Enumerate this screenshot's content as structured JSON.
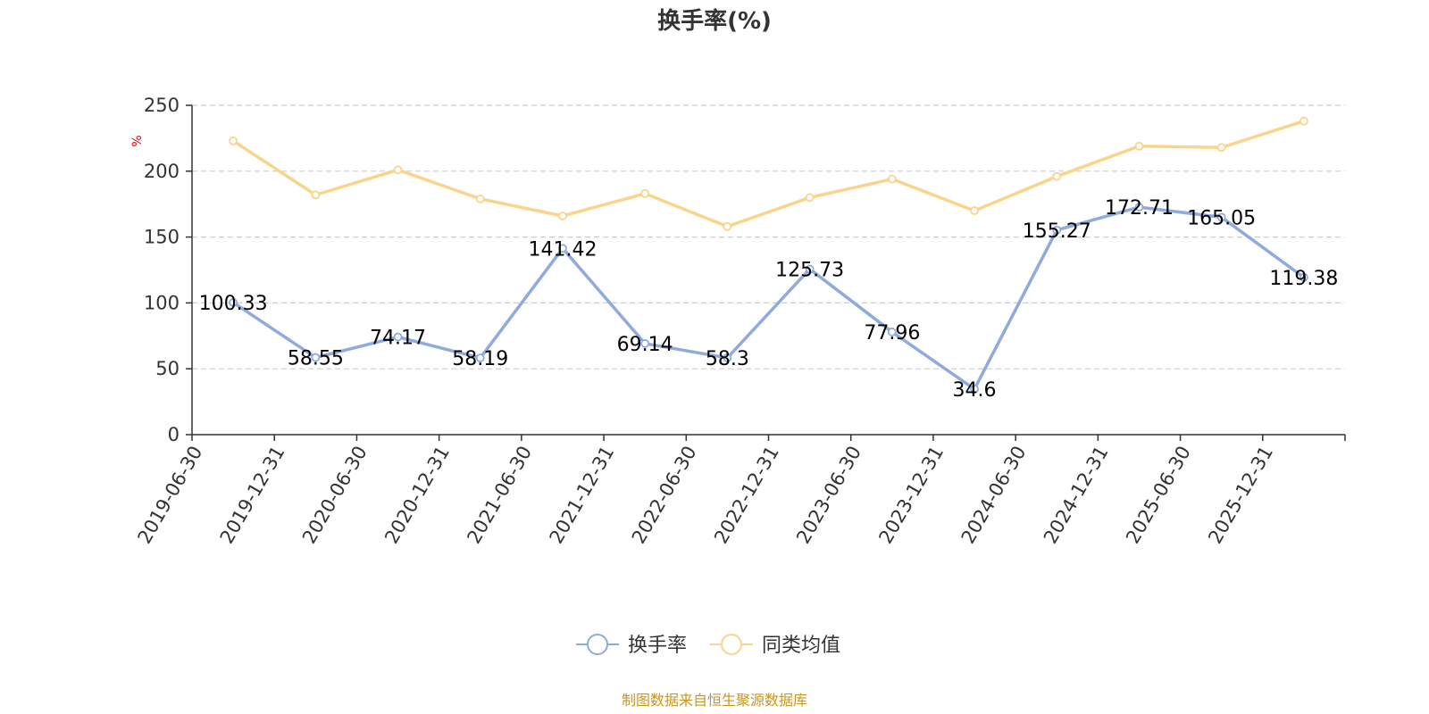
{
  "chart_data": {
    "type": "line",
    "title": "换手率(%)",
    "ylabel": "%",
    "xlabel": "",
    "ylim": [
      0,
      250
    ],
    "yticks": [
      0,
      50,
      100,
      150,
      200,
      250
    ],
    "grid": true,
    "legend_position": "bottom-center",
    "categories": [
      "2019-06-30",
      "2019-12-31",
      "2020-06-30",
      "2020-12-31",
      "2021-06-30",
      "2021-12-31",
      "2022-06-30",
      "2022-12-31",
      "2023-06-30",
      "2023-12-31",
      "2024-06-30",
      "2024-12-31",
      "2025-06-30",
      "2025-12-31"
    ],
    "series": [
      {
        "name": "换手率",
        "color": "#8faadc",
        "show_labels": true,
        "values": [
          100.33,
          58.55,
          74.17,
          58.19,
          141.42,
          69.14,
          58.3,
          125.73,
          77.96,
          34.6,
          155.27,
          172.71,
          165.05,
          119.38
        ]
      },
      {
        "name": "同类均值",
        "color": "#fbd48c",
        "show_labels": false,
        "values": [
          223,
          182,
          201,
          179,
          166,
          183,
          158,
          180,
          194,
          170,
          196,
          219,
          218,
          238
        ]
      }
    ]
  },
  "colors": {
    "axis": "#333333",
    "grid": "#cccccc",
    "unit": "#e60012",
    "source": "#c8961e"
  },
  "source_text": "制图数据来自恒生聚源数据库"
}
